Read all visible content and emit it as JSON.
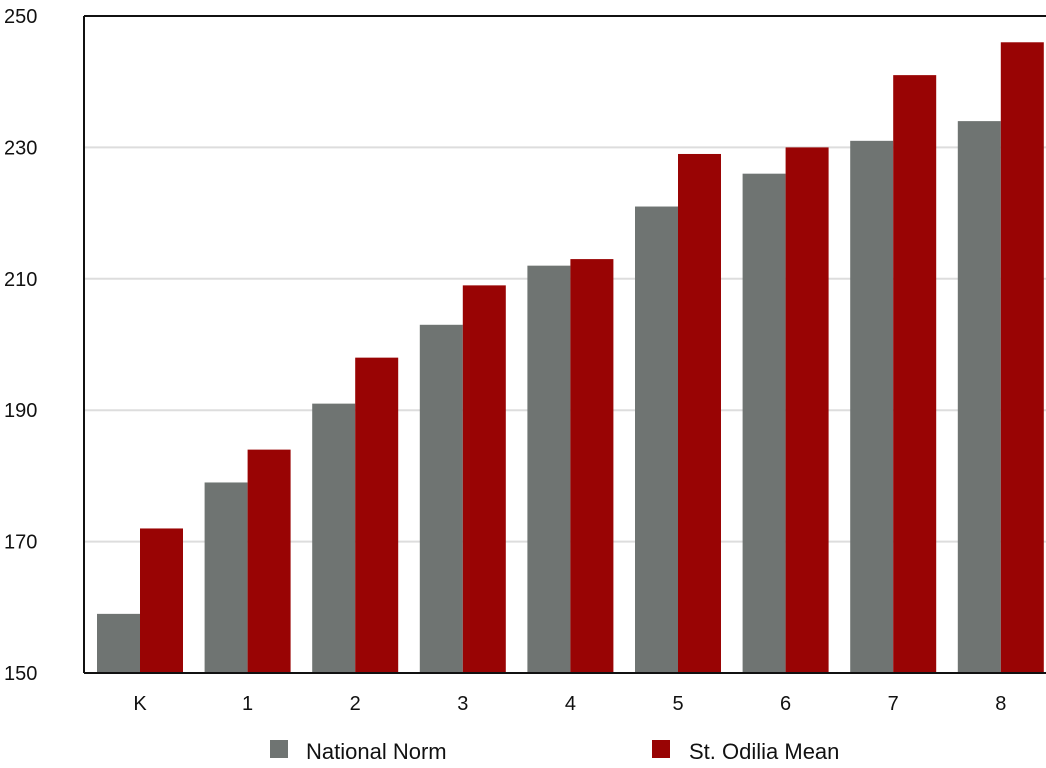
{
  "chart_data": {
    "type": "bar",
    "title": "",
    "xlabel": "",
    "ylabel": "",
    "categories": [
      "K",
      "1",
      "2",
      "3",
      "4",
      "5",
      "6",
      "7",
      "8"
    ],
    "series": [
      {
        "name": "National Norm",
        "color": "#6f7472",
        "values": [
          159,
          179,
          191,
          203,
          212,
          221,
          226,
          231,
          234
        ]
      },
      {
        "name": "St. Odilia Mean",
        "color": "#990404",
        "values": [
          172,
          184,
          198,
          209,
          213,
          229,
          230,
          241,
          246
        ]
      }
    ],
    "ylim": [
      150,
      250
    ],
    "yticks": [
      150,
      170,
      190,
      210,
      230,
      250
    ],
    "grid": true,
    "legend_position": "bottom"
  }
}
